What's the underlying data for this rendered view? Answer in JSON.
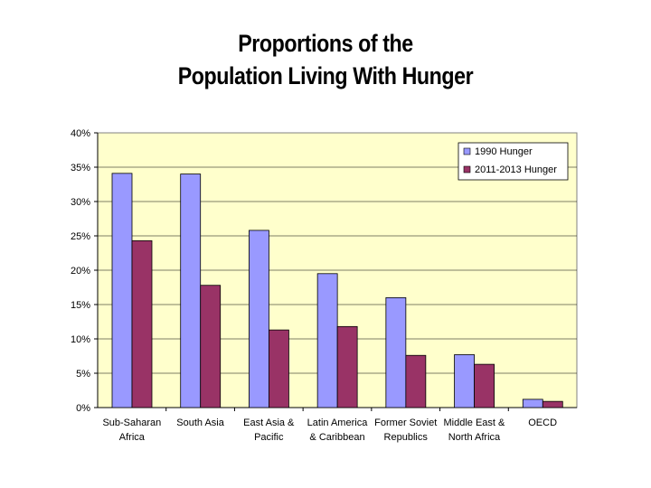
{
  "title_lines": [
    "Proportions of the",
    "Population Living With Hunger"
  ],
  "chart_data": {
    "type": "bar",
    "title": "Proportions of the Population Living With Hunger",
    "categories": [
      [
        "Sub-Saharan",
        "Africa"
      ],
      [
        "South Asia"
      ],
      [
        "East Asia &",
        "Pacific"
      ],
      [
        "Latin America",
        "& Caribbean"
      ],
      [
        "Former Soviet",
        "Republics"
      ],
      [
        "Middle East &",
        "North Africa"
      ],
      [
        "OECD"
      ]
    ],
    "series": [
      {
        "name": "1990 Hunger",
        "color": "#9999ff",
        "values": [
          34.1,
          34.0,
          25.8,
          19.5,
          16.0,
          7.7,
          1.2
        ]
      },
      {
        "name": "2011-2013 Hunger",
        "color": "#993366",
        "values": [
          24.3,
          17.8,
          11.3,
          11.8,
          7.6,
          6.3,
          0.9
        ]
      }
    ],
    "ylim": [
      0,
      40
    ],
    "yticks": [
      "0%",
      "5%",
      "10%",
      "15%",
      "20%",
      "25%",
      "30%",
      "35%",
      "40%"
    ],
    "ytick_values": [
      0,
      5,
      10,
      15,
      20,
      25,
      30,
      35,
      40
    ],
    "xlabel": "",
    "ylabel": "",
    "plot_background": "#ffffcc",
    "grid": true,
    "legend_position": "top-right"
  }
}
